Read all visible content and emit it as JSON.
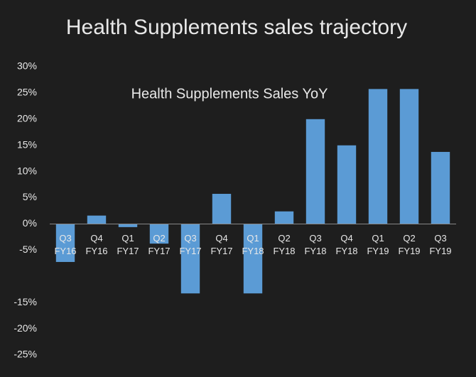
{
  "chart_data": {
    "type": "bar",
    "title": "Health Supplements sales trajectory",
    "subtitle": "Health Supplements Sales YoY",
    "categories": [
      [
        "Q3",
        "FY16"
      ],
      [
        "Q4",
        "FY16"
      ],
      [
        "Q1",
        "FY17"
      ],
      [
        "Q2",
        "FY17"
      ],
      [
        "Q3",
        "FY17"
      ],
      [
        "Q4",
        "FY17"
      ],
      [
        "Q1",
        "FY18"
      ],
      [
        "Q2",
        "FY18"
      ],
      [
        "Q3",
        "FY18"
      ],
      [
        "Q4",
        "FY18"
      ],
      [
        "Q1",
        "FY19"
      ],
      [
        "Q2",
        "FY19"
      ],
      [
        "Q3",
        "FY19"
      ]
    ],
    "values": [
      -7.25,
      1.6,
      -0.6,
      -3.75,
      -13.25,
      5.75,
      -13.25,
      2.4,
      20,
      15,
      25.75,
      25.75,
      13.75
    ],
    "color": "#5b9bd5",
    "ylim": [
      -25,
      30
    ],
    "yticks": [
      {
        "value": 30,
        "label": "30%"
      },
      {
        "value": 25,
        "label": "25%"
      },
      {
        "value": 20,
        "label": "20%"
      },
      {
        "value": 15,
        "label": "15%"
      },
      {
        "value": 10,
        "label": "10%"
      },
      {
        "value": 5,
        "label": "5%"
      },
      {
        "value": 0,
        "label": "0%"
      },
      {
        "value": -5,
        "label": "-5%"
      },
      {
        "value": -15,
        "label": "-15%"
      },
      {
        "value": -20,
        "label": "-20%"
      },
      {
        "value": -25,
        "label": "-25%"
      }
    ],
    "grid": false
  }
}
